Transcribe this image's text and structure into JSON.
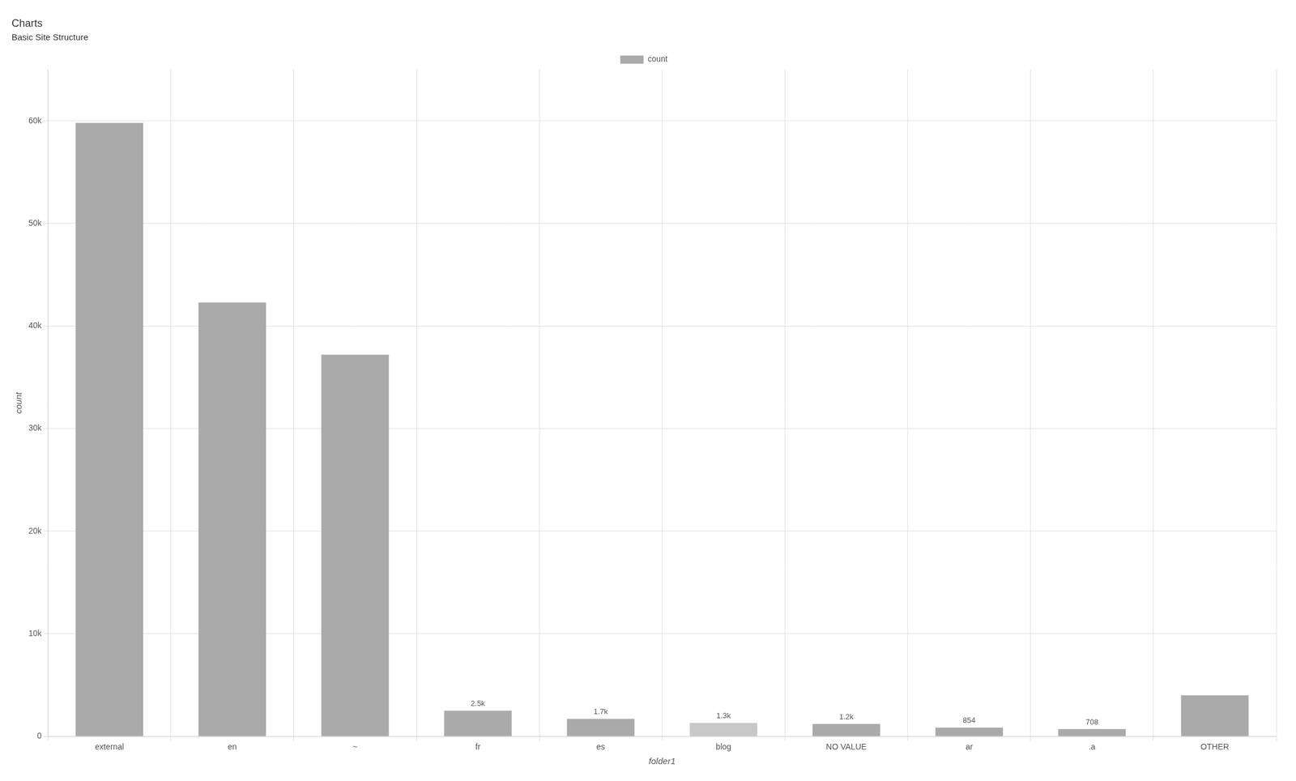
{
  "chart_data": {
    "type": "bar",
    "title": "Charts",
    "subtitle": "Basic Site Structure",
    "x_label": "folder1",
    "y_label": "count",
    "categories": [
      "external",
      "en",
      "~",
      "fr",
      "es",
      "blog",
      "NO VALUE",
      "ar",
      ".a",
      "OTHER"
    ],
    "series": [
      {
        "name": "count",
        "color": "#aaaaaa",
        "colors": [
          "#aaaaaa",
          "#aaaaaa",
          "#aaaaaa",
          "#aaaaaa",
          "#aaaaaa",
          "#c8c8c8",
          "#aaaaaa",
          "#aaaaaa",
          "#aaaaaa",
          "#aaaaaa"
        ],
        "values": [
          59800,
          42300,
          37200,
          2500,
          1700,
          1300,
          1200,
          854,
          708,
          4000
        ],
        "value_labels": [
          null,
          null,
          null,
          "2.5k",
          "1.7k",
          "1.3k",
          "1.2k",
          "854",
          "708",
          null
        ]
      }
    ],
    "ylim": [
      0,
      65000
    ],
    "yticks": [
      0,
      {
        "value": 10000,
        "label": "10k"
      },
      {
        "value": 20000,
        "label": "20k"
      },
      {
        "value": 30000,
        "label": "30k"
      },
      {
        "value": 40000,
        "label": "40k"
      },
      {
        "value": 50000,
        "label": "50k"
      },
      {
        "value": 60000,
        "label": "60k"
      }
    ],
    "grid": true,
    "legend": "top",
    "data_labels": true
  }
}
